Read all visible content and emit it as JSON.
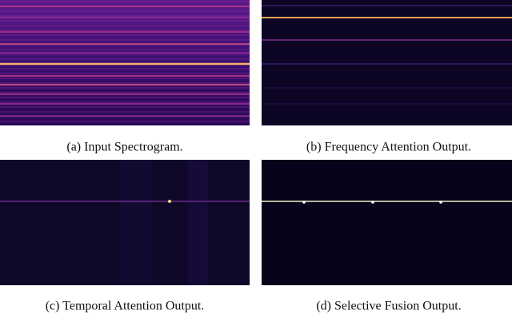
{
  "captions": {
    "a": "(a) Input Spectrogram.",
    "b": "(b) Frequency Attention Output.",
    "c": "(c) Temporal Attention Output.",
    "d": "(d) Selective Fusion Output."
  }
}
